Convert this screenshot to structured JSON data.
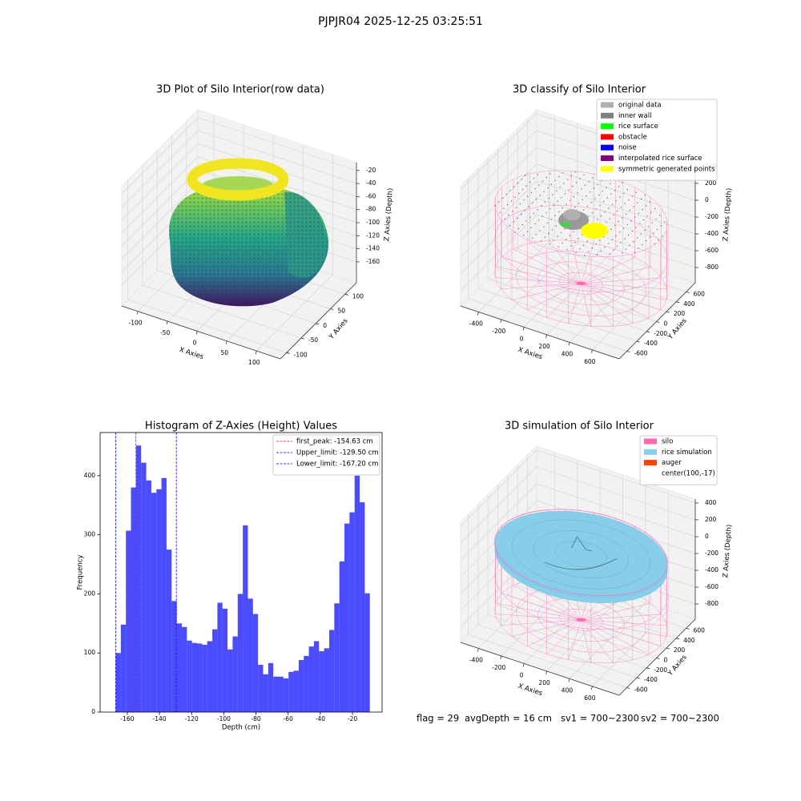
{
  "suptitle": "PJPJR04 2025-12-25 03:25:51",
  "chart_data": [
    {
      "type": "scatter3d",
      "title": "3D Plot of Silo Interior(row data)",
      "xlabel": "X Axies",
      "ylabel": "Y Axies",
      "zlabel": "Z Axies (Depth)",
      "xlim": [
        -127,
        140
      ],
      "xticks": [
        -100,
        -50,
        0,
        50,
        100
      ],
      "ylim": [
        -121,
        139
      ],
      "yticks": [
        -100,
        -50,
        0,
        50,
        100
      ],
      "zlim": [
        -192,
        -8
      ],
      "zticks": [
        -20,
        -40,
        -60,
        -80,
        -100,
        -120,
        -140,
        -160
      ]
    },
    {
      "type": "scatter3d",
      "title": "3D classify of Silo Interior",
      "xlabel": "X Axies",
      "ylabel": "Y Axies",
      "zlabel": "Z Axies (Depth)",
      "xlim": [
        -558,
        837
      ],
      "xticks": [
        -400,
        -200,
        0,
        200,
        400,
        600
      ],
      "ylim": [
        -754,
        785
      ],
      "yticks": [
        -600,
        -400,
        -200,
        0,
        200,
        400,
        600
      ],
      "zlim": [
        -981,
        447
      ],
      "zticks": [
        -800,
        -600,
        -400,
        -200,
        0,
        200,
        400
      ],
      "legend": [
        {
          "name": "original data",
          "color": "#b0b0b0"
        },
        {
          "name": "inner wall",
          "color": "#808080"
        },
        {
          "name": "rice surface",
          "color": "#00ff00"
        },
        {
          "name": "obstacle",
          "color": "#ff0000"
        },
        {
          "name": "noise",
          "color": "#0000ff"
        },
        {
          "name": "interpolated rice surface",
          "color": "#800080"
        },
        {
          "name": "symmetric generated points",
          "color": "#ffff00"
        }
      ]
    },
    {
      "type": "histogram",
      "title": "Histogram of Z-Axies (Height) Values",
      "xlabel": "Depth (cm)",
      "ylabel": "Frequency",
      "color": "#0000ff",
      "alpha": 0.7,
      "bins": [
        -167.2,
        -164.04,
        -160.88,
        -157.72,
        -154.56,
        -151.4,
        -148.24,
        -145.08,
        -141.92,
        -138.76,
        -135.6,
        -132.44,
        -129.28,
        -126.12,
        -122.96,
        -119.8,
        -116.64,
        -113.48,
        -110.32,
        -107.16,
        -104.0,
        -100.84,
        -97.68,
        -94.52,
        -91.36,
        -88.2,
        -85.04,
        -81.88,
        -78.72,
        -75.56,
        -72.4,
        -69.24,
        -66.08,
        -62.92,
        -59.76,
        -56.6,
        -53.44,
        -50.28,
        -47.12,
        -43.96,
        -40.8,
        -37.64,
        -34.48,
        -31.32,
        -28.16,
        -25.0,
        -21.84,
        -18.68,
        -15.52,
        -12.36,
        -9.2
      ],
      "counts": [
        100,
        148,
        307,
        380,
        451,
        422,
        392,
        371,
        377,
        396,
        275,
        188,
        150,
        144,
        121,
        117,
        116,
        114,
        120,
        140,
        185,
        175,
        106,
        128,
        200,
        316,
        192,
        166,
        80,
        64,
        83,
        60,
        60,
        57,
        68,
        70,
        88,
        95,
        111,
        120,
        103,
        108,
        139,
        184,
        255,
        319,
        338,
        400,
        355,
        201
      ],
      "xlim": [
        -176.9,
        -1.6
      ],
      "xticks": [
        -160,
        -140,
        -120,
        -100,
        -80,
        -60,
        -40,
        -20
      ],
      "ylim": [
        0,
        473
      ],
      "yticks": [
        0,
        100,
        200,
        300,
        400
      ],
      "legend_loc": "upper right",
      "lines": [
        {
          "label": "first_peak: -154.63 cm",
          "value": -154.63,
          "color": "#ff0000"
        },
        {
          "label": "Upper_limit: -129.50 cm",
          "value": -129.5,
          "color": "#0000ff"
        },
        {
          "label": "Lower_limit: -167.20 cm",
          "value": -167.2,
          "color": "#0000ff"
        }
      ]
    },
    {
      "type": "surface3d",
      "title": "3D simulation of Silo Interior",
      "xlabel": "X Axies",
      "ylabel": "Y Axies",
      "zlabel": "Z Axies (Depth)",
      "xlim": [
        -558,
        837
      ],
      "xticks": [
        -400,
        -200,
        0,
        200,
        400,
        600
      ],
      "ylim": [
        -754,
        785
      ],
      "yticks": [
        -600,
        -400,
        -200,
        0,
        200,
        400,
        600
      ],
      "zlim": [
        -981,
        447
      ],
      "zticks": [
        -800,
        -600,
        -400,
        -200,
        0,
        200,
        400
      ],
      "legend": [
        {
          "name": "silo",
          "color": "#ff69b4"
        },
        {
          "name": "rice simulation",
          "color": "#87ceeb"
        },
        {
          "name": "auger",
          "color": "#ff4500"
        },
        {
          "name": "center(100,-17)",
          "color": "#ffffff"
        }
      ]
    }
  ],
  "footer": [
    "flag = 29",
    "avgDepth = 16 cm",
    "sv1 = 700~2300",
    "sv2 = 700~2300"
  ]
}
